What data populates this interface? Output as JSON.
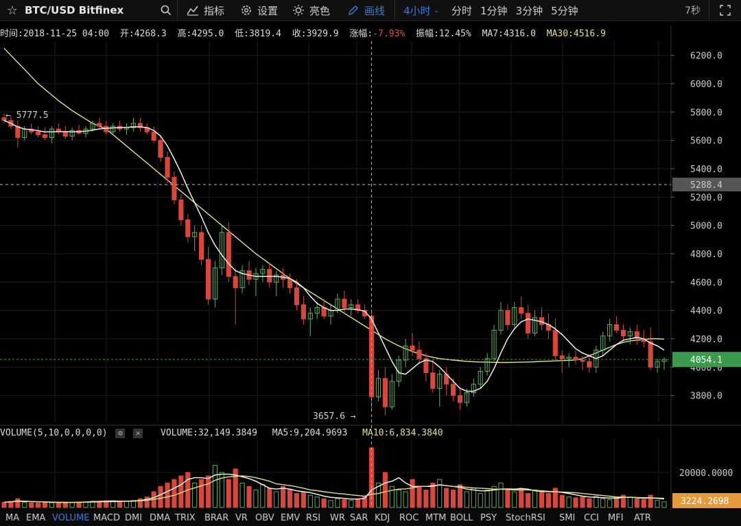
{
  "toolbar": {
    "symbol": "BTC/USD Bitfinex",
    "indicators_label": "指标",
    "settings_label": "设置",
    "theme_label": "亮色",
    "draw_label": "画线",
    "interval_selected": "4小时",
    "interval_options": [
      "分时",
      "1分钟",
      "3分钟",
      "5分钟"
    ],
    "countdown": "7秒"
  },
  "info": {
    "time_label": "时间:",
    "time": "2018-11-25 04:00",
    "open_label": "开:",
    "open": "4268.3",
    "high_label": "高:",
    "high": "4295.0",
    "low_label": "低:",
    "low": "3819.4",
    "close_label": "收:",
    "close": "3929.9",
    "change_label": "涨幅:",
    "change": "-7.93%",
    "amplitude_label": "振幅:",
    "amplitude": "12.45%",
    "ma7_label": "MA7:",
    "ma7": "4316.0",
    "ma30_label": "MA30:",
    "ma30": "4516.9"
  },
  "volume_info": {
    "title": "VOLUME(5,10,0,0,0,0)",
    "volume_label": "VOLUME:",
    "volume": "32,149.3849",
    "ma5_label": "MA5:",
    "ma5": "9,204.9693",
    "ma10_label": "MA10:",
    "ma10": "6,834.3840"
  },
  "price_axis": {
    "ticks": [
      "6200.0",
      "6000.0",
      "5800.0",
      "5600.0",
      "5400.0",
      "5200.0",
      "5000.0",
      "4800.0",
      "4600.0",
      "4400.0",
      "4200.0",
      "4000.0",
      "3800.0"
    ],
    "crosshair_price": "5288.4",
    "last_price": "4054.1"
  },
  "volume_axis": {
    "ticks": [
      "20000.0000"
    ],
    "last_volume": "3224.2698"
  },
  "annotations": {
    "high_marker": "← 5777.5",
    "low_marker": "3657.6 →"
  },
  "indicator_tabs": [
    "MA",
    "EMA",
    "VOLUME",
    "MACD",
    "DMI",
    "DMA",
    "TRIX",
    "BRAR",
    "VR",
    "OBV",
    "EMV",
    "RSI",
    "WR",
    "SAR",
    "KDJ",
    "ROC",
    "MTM",
    "BOLL",
    "PSY",
    "StochRSI",
    "SMI",
    "CCI",
    "MFI",
    "ATR"
  ],
  "active_indicator": "VOLUME",
  "colors": {
    "up": "#5db35d",
    "down": "#d9473a",
    "ma_fast": "#ffffff",
    "ma_slow": "#e8e082",
    "accent": "#3b7dd8",
    "last_price_bg": "#3c9a4c",
    "last_volume_bg": "#e69b3a",
    "change_negative": "#e0503e"
  },
  "chart_data": {
    "type": "candlestick",
    "y_range": [
      3600,
      6300
    ],
    "candles_ohlc": [
      [
        5760,
        5790,
        5720,
        5740
      ],
      [
        5740,
        5770,
        5680,
        5700
      ],
      [
        5700,
        5740,
        5550,
        5620
      ],
      [
        5620,
        5700,
        5600,
        5680
      ],
      [
        5680,
        5720,
        5640,
        5660
      ],
      [
        5660,
        5700,
        5620,
        5640
      ],
      [
        5640,
        5690,
        5600,
        5620
      ],
      [
        5620,
        5700,
        5580,
        5680
      ],
      [
        5680,
        5720,
        5640,
        5660
      ],
      [
        5660,
        5700,
        5610,
        5630
      ],
      [
        5630,
        5690,
        5600,
        5670
      ],
      [
        5670,
        5710,
        5640,
        5650
      ],
      [
        5650,
        5700,
        5620,
        5680
      ],
      [
        5680,
        5740,
        5660,
        5720
      ],
      [
        5720,
        5760,
        5680,
        5700
      ],
      [
        5700,
        5740,
        5640,
        5660
      ],
      [
        5660,
        5720,
        5640,
        5700
      ],
      [
        5700,
        5740,
        5660,
        5680
      ],
      [
        5680,
        5720,
        5640,
        5690
      ],
      [
        5690,
        5760,
        5660,
        5720
      ],
      [
        5720,
        5760,
        5660,
        5690
      ],
      [
        5690,
        5720,
        5640,
        5660
      ],
      [
        5660,
        5700,
        5580,
        5600
      ],
      [
        5600,
        5640,
        5450,
        5480
      ],
      [
        5480,
        5520,
        5300,
        5340
      ],
      [
        5340,
        5380,
        5150,
        5180
      ],
      [
        5180,
        5220,
        5000,
        5040
      ],
      [
        5040,
        5080,
        4880,
        4920
      ],
      [
        4920,
        5000,
        4820,
        4950
      ],
      [
        4950,
        5000,
        4720,
        4760
      ],
      [
        4760,
        4850,
        4440,
        4480
      ],
      [
        4480,
        4750,
        4420,
        4700
      ],
      [
        4700,
        5000,
        4650,
        4950
      ],
      [
        4950,
        5020,
        4600,
        4640
      ],
      [
        4640,
        4700,
        4300,
        4560
      ],
      [
        4560,
        4720,
        4520,
        4680
      ],
      [
        4680,
        4750,
        4580,
        4620
      ],
      [
        4620,
        4700,
        4500,
        4660
      ],
      [
        4660,
        4720,
        4600,
        4690
      ],
      [
        4690,
        4740,
        4560,
        4600
      ],
      [
        4600,
        4680,
        4500,
        4650
      ],
      [
        4650,
        4700,
        4560,
        4620
      ],
      [
        4620,
        4660,
        4520,
        4560
      ],
      [
        4560,
        4620,
        4400,
        4440
      ],
      [
        4440,
        4500,
        4300,
        4340
      ],
      [
        4340,
        4420,
        4220,
        4380
      ],
      [
        4380,
        4460,
        4340,
        4420
      ],
      [
        4420,
        4480,
        4340,
        4360
      ],
      [
        4360,
        4440,
        4300,
        4400
      ],
      [
        4400,
        4520,
        4380,
        4480
      ],
      [
        4480,
        4540,
        4380,
        4420
      ],
      [
        4420,
        4480,
        4360,
        4440
      ],
      [
        4440,
        4480,
        4380,
        4400
      ],
      [
        4400,
        4440,
        4340,
        4360
      ],
      [
        4360,
        4400,
        3700,
        3790
      ],
      [
        3790,
        3980,
        3760,
        3920
      ],
      [
        3920,
        4000,
        3660,
        3720
      ],
      [
        3720,
        3950,
        3700,
        3900
      ],
      [
        3900,
        4080,
        3860,
        4050
      ],
      [
        4050,
        4200,
        4000,
        4150
      ],
      [
        4150,
        4240,
        4080,
        4120
      ],
      [
        4120,
        4180,
        4020,
        4060
      ],
      [
        4060,
        4100,
        3900,
        3960
      ],
      [
        3960,
        4050,
        3820,
        3850
      ],
      [
        3850,
        3980,
        3720,
        3950
      ],
      [
        3950,
        4000,
        3800,
        3880
      ],
      [
        3880,
        3920,
        3760,
        3800
      ],
      [
        3800,
        3860,
        3700,
        3750
      ],
      [
        3750,
        3850,
        3720,
        3820
      ],
      [
        3820,
        3920,
        3790,
        3880
      ],
      [
        3880,
        4000,
        3850,
        3970
      ],
      [
        3970,
        4100,
        3940,
        4060
      ],
      [
        4060,
        4300,
        4040,
        4260
      ],
      [
        4260,
        4460,
        4230,
        4400
      ],
      [
        4400,
        4440,
        4260,
        4300
      ],
      [
        4300,
        4460,
        4280,
        4420
      ],
      [
        4420,
        4500,
        4340,
        4380
      ],
      [
        4380,
        4440,
        4200,
        4240
      ],
      [
        4240,
        4400,
        4220,
        4350
      ],
      [
        4350,
        4420,
        4260,
        4300
      ],
      [
        4300,
        4380,
        4200,
        4260
      ],
      [
        4260,
        4340,
        4040,
        4080
      ],
      [
        4080,
        4120,
        3960,
        4060
      ],
      [
        4060,
        4100,
        4000,
        4070
      ],
      [
        4070,
        4120,
        4020,
        4050
      ],
      [
        4050,
        4080,
        3980,
        4040
      ],
      [
        4040,
        4090,
        3960,
        4000
      ],
      [
        4000,
        4150,
        3960,
        4120
      ],
      [
        4120,
        4250,
        4080,
        4220
      ],
      [
        4220,
        4340,
        4180,
        4300
      ],
      [
        4300,
        4360,
        4240,
        4260
      ],
      [
        4260,
        4300,
        4180,
        4220
      ],
      [
        4220,
        4280,
        4160,
        4250
      ],
      [
        4250,
        4300,
        4160,
        4200
      ],
      [
        4200,
        4260,
        4140,
        4180
      ],
      [
        4180,
        4280,
        3980,
        4000
      ],
      [
        4000,
        4060,
        3960,
        4040
      ],
      [
        4040,
        4070,
        3980,
        4054
      ]
    ],
    "ma7": [
      5740,
      5720,
      5695,
      5680,
      5675,
      5668,
      5660,
      5660,
      5662,
      5662,
      5660,
      5662,
      5665,
      5672,
      5680,
      5685,
      5688,
      5690,
      5692,
      5695,
      5695,
      5690,
      5670,
      5630,
      5560,
      5470,
      5370,
      5260,
      5160,
      5060,
      4950,
      4860,
      4790,
      4730,
      4680,
      4660,
      4650,
      4640,
      4640,
      4640,
      4640,
      4635,
      4625,
      4600,
      4560,
      4500,
      4450,
      4420,
      4400,
      4400,
      4410,
      4410,
      4405,
      4395,
      4340,
      4240,
      4140,
      4040,
      3960,
      3950,
      3990,
      4030,
      4050,
      4040,
      4000,
      3950,
      3900,
      3850,
      3830,
      3830,
      3850,
      3900,
      3990,
      4100,
      4200,
      4270,
      4320,
      4340,
      4330,
      4320,
      4300,
      4270,
      4230,
      4180,
      4130,
      4100,
      4080,
      4060,
      4080,
      4120,
      4160,
      4190,
      4200,
      4210,
      4200,
      4170,
      4150,
      4120
    ],
    "ma30": [
      6250,
      6200,
      6150,
      6100,
      6050,
      6000,
      5960,
      5920,
      5880,
      5845,
      5810,
      5780,
      5750,
      5720,
      5700,
      5680,
      5640,
      5600,
      5560,
      5520,
      5480,
      5440,
      5400,
      5360,
      5320,
      5280,
      5240,
      5200,
      5160,
      5120,
      5080,
      5040,
      5000,
      4960,
      4920,
      4880,
      4840,
      4800,
      4765,
      4730,
      4695,
      4660,
      4625,
      4590,
      4560,
      4530,
      4500,
      4470,
      4440,
      4410,
      4380,
      4350,
      4320,
      4290,
      4260,
      4230,
      4200,
      4175,
      4150,
      4130,
      4110,
      4095,
      4080,
      4070,
      4060,
      4055,
      4050,
      4045,
      4040,
      4038,
      4036,
      4035,
      4034,
      4033,
      4033,
      4034,
      4035,
      4036,
      4038,
      4040,
      4042,
      4044,
      4046,
      4048,
      4050,
      4060,
      4080,
      4100,
      4120,
      4140,
      4160,
      4175,
      4185,
      4190,
      4195,
      4200,
      4200,
      4198
    ],
    "volume": [
      3000,
      3500,
      5000,
      2800,
      2600,
      2500,
      3000,
      2700,
      2600,
      2900,
      2800,
      3000,
      3200,
      3600,
      3400,
      3800,
      3600,
      3200,
      3600,
      4000,
      5000,
      6000,
      9000,
      12000,
      14000,
      16000,
      18000,
      20000,
      14000,
      16000,
      18000,
      24000,
      20000,
      16000,
      22000,
      14000,
      12000,
      10000,
      13000,
      11000,
      9000,
      12000,
      10000,
      8000,
      9000,
      7000,
      6000,
      5000,
      4000,
      5000,
      4500,
      4000,
      5000,
      6000,
      34000,
      14000,
      20000,
      12000,
      10000,
      9000,
      16000,
      12000,
      10000,
      14000,
      16000,
      11000,
      10000,
      13000,
      9000,
      11000,
      8000,
      10000,
      12000,
      14000,
      10000,
      9000,
      11000,
      8000,
      10000,
      9000,
      8000,
      11000,
      7000,
      6000,
      5500,
      6000,
      5000,
      6500,
      5000,
      4500,
      6000,
      7000,
      6000,
      5000,
      4500,
      7000,
      4000,
      3224
    ],
    "volume_ma5": [
      3000,
      3200,
      3700,
      3600,
      3400,
      3300,
      3100,
      3000,
      2900,
      2800,
      2900,
      3000,
      3100,
      3300,
      3500,
      3600,
      3700,
      3600,
      3600,
      3700,
      4000,
      4600,
      5600,
      7300,
      9100,
      11000,
      13000,
      16000,
      17000,
      17000,
      16500,
      18500,
      19000,
      19000,
      18500,
      17500,
      16500,
      15000,
      13000,
      11000,
      10500,
      11000,
      10500,
      9500,
      9000,
      8500,
      7500,
      6500,
      5800,
      5500,
      5200,
      4800,
      4800,
      5200,
      10000,
      12000,
      14000,
      15000,
      17000,
      14000,
      12000,
      12000,
      12000,
      12000,
      13000,
      12500,
      12000,
      11500,
      10500,
      10000,
      9500,
      9500,
      10000,
      10500,
      10600,
      10500,
      10800,
      10500,
      9500,
      9200,
      9000,
      9000,
      8600,
      8000,
      7200,
      6500,
      6000,
      5800,
      5600,
      5400,
      5300,
      5800,
      5800,
      5600,
      5300,
      5400,
      5200,
      4900
    ],
    "volume_ma10": [
      3000,
      3200,
      3500,
      3400,
      3300,
      3200,
      3200,
      3100,
      3000,
      3000,
      2900,
      2900,
      3000,
      3100,
      3200,
      3300,
      3300,
      3400,
      3500,
      3600,
      3800,
      4100,
      4600,
      5300,
      6100,
      7000,
      8400,
      10000,
      11200,
      12400,
      13500,
      15500,
      16800,
      17500,
      17800,
      18000,
      17700,
      17000,
      16000,
      15000,
      13500,
      13000,
      12500,
      11800,
      11000,
      10000,
      9600,
      9000,
      8500,
      8000,
      7700,
      7200,
      6800,
      6400,
      7500,
      8000,
      9000,
      9800,
      10500,
      10600,
      11200,
      12000,
      12000,
      12500,
      12800,
      12500,
      12000,
      12000,
      11500,
      11200,
      11000,
      10800,
      10500,
      10400,
      10300,
      10000,
      10000,
      10000,
      9800,
      9500,
      9200,
      9000,
      8800,
      8600,
      8400,
      8000,
      7600,
      7200,
      6800,
      6400,
      6000,
      5900,
      5800,
      5700,
      5600,
      5500,
      5400,
      5200
    ],
    "volume_y_range": [
      0,
      36000
    ],
    "crosshair": {
      "price": 5288.4
    },
    "high_label_value": 5777.5,
    "low_label_value": 3657.6
  }
}
